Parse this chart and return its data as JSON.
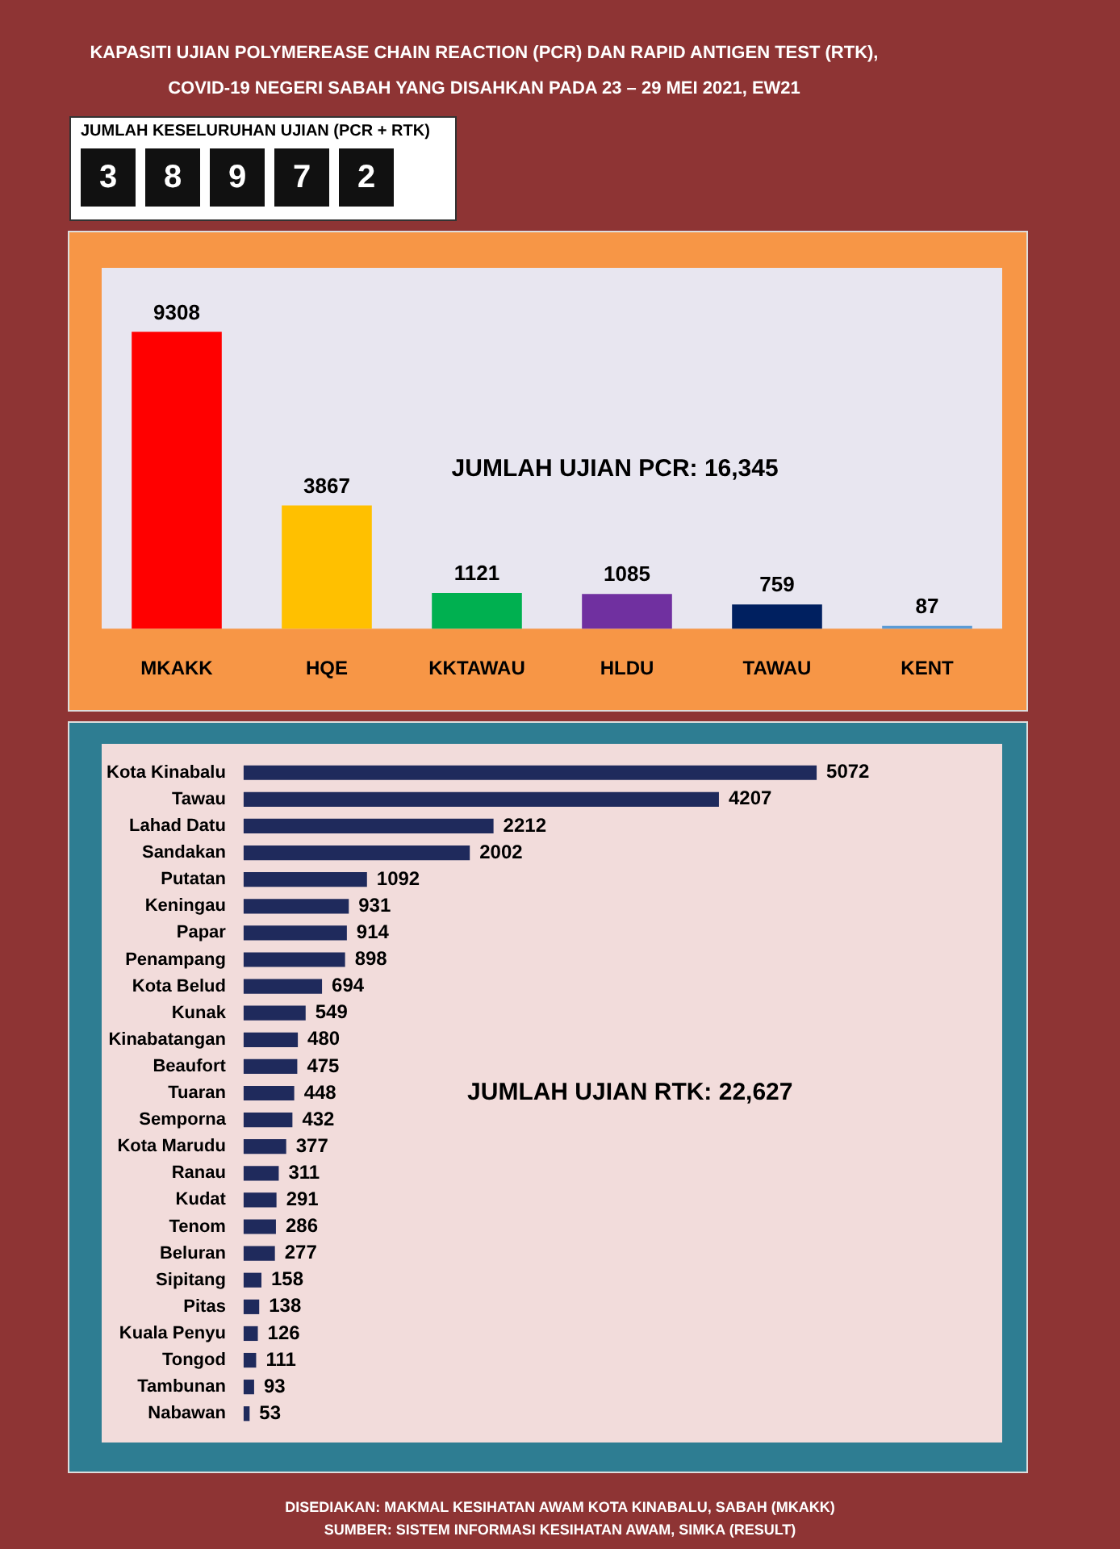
{
  "chart_data": [
    {
      "type": "other",
      "title": "KAPASITI UJIAN POLYMEREASE CHAIN REACTION (PCR) DAN RAPID ANTIGEN TEST (RTK),",
      "subtitle": "COVID-19 NEGERI SABAH YANG DISAHKAN PADA 23  – 29 MEI 2021, EW21",
      "annotations": [
        "JUMLAH KESELURUHAN UJIAN (PCR + RTK)",
        "3",
        "8",
        "9",
        "7",
        "2"
      ]
    },
    {
      "type": "bar",
      "categories": [
        "MKAKK",
        "HQE",
        "KKTAWAU",
        "HLDU",
        "TAWAU",
        "KENT"
      ],
      "values": [
        9308,
        3867,
        1121,
        1085,
        759,
        87
      ],
      "colors": [
        "#ff0000",
        "#ffc000",
        "#00b050",
        "#7030a0",
        "#002060",
        "#5b9bd5"
      ],
      "data_labels": true,
      "annotations": [
        "JUMLAH UJIAN PCR: 16,345"
      ]
    },
    {
      "type": "bar",
      "orientation": "horizontal",
      "categories": [
        "Kota Kinabalu",
        "Tawau",
        "Lahad Datu",
        "Sandakan",
        "Putatan",
        "Keningau",
        "Papar",
        "Penampang",
        "Kota Belud",
        "Kunak",
        "Kinabatangan",
        "Beaufort",
        "Tuaran",
        "Semporna",
        "Kota Marudu",
        "Ranau",
        "Kudat",
        "Tenom",
        "Beluran",
        "Sipitang",
        "Pitas",
        "Kuala Penyu",
        "Tongod",
        "Tambunan",
        "Nabawan"
      ],
      "values": [
        5072,
        4207,
        2212,
        2002,
        1092,
        931,
        914,
        898,
        694,
        549,
        480,
        475,
        448,
        432,
        377,
        311,
        291,
        286,
        277,
        158,
        138,
        126,
        111,
        93,
        53
      ],
      "color": "#1f2a5c",
      "data_labels": true,
      "annotations": [
        "JUMLAH UJIAN RTK: 22,627"
      ]
    },
    {
      "type": "other",
      "annotations": [
        "DISEDIAKAN: MAKMAL KESIHATAN AWAM KOTA KINABALU, SABAH (MKAKK)",
        "SUMBER: SISTEM INFORMASI KESIHATAN AWAM, SIMKA (RESULT)"
      ]
    }
  ]
}
